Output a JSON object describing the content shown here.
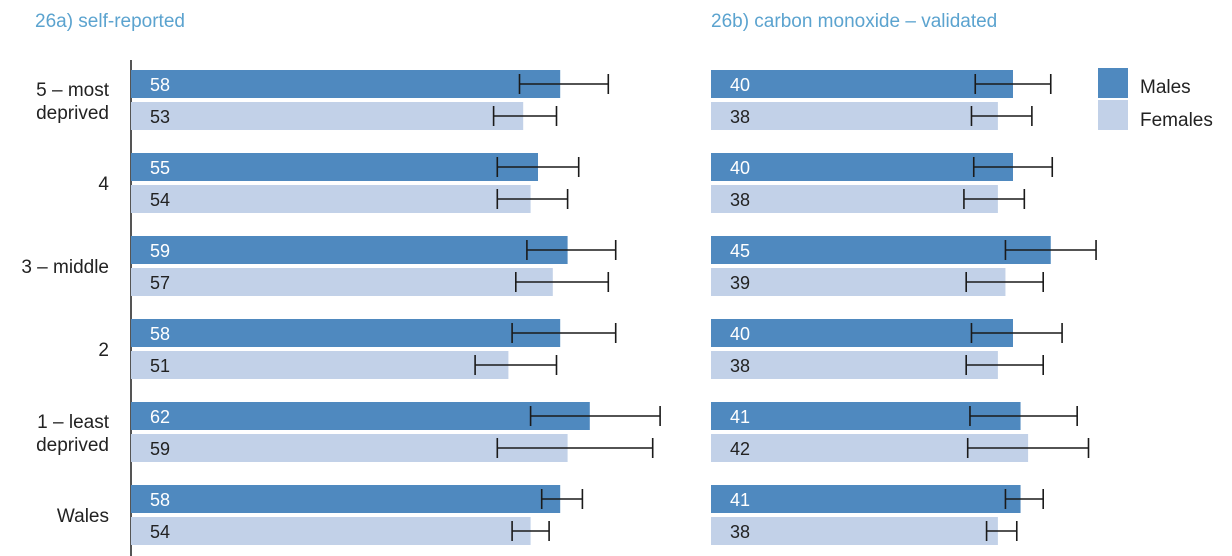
{
  "colors": {
    "males": "#4f89bf",
    "females": "#c2d1e8",
    "title": "#5ba3cf",
    "axis": "#555555",
    "error_bar": "#1a1a1a",
    "male_label": "#ffffff",
    "female_label": "#222222"
  },
  "legend": {
    "males": "Males",
    "females": "Females"
  },
  "chart_data": [
    {
      "type": "bar",
      "orientation": "horizontal",
      "title": "26a) self-reported",
      "categories": [
        "5 – most deprived",
        "4",
        "3 – middle",
        "2",
        "1 – least deprived",
        "Wales"
      ],
      "category_lines": [
        [
          "5 – most",
          "deprived"
        ],
        [
          "4"
        ],
        [
          "3 – middle"
        ],
        [
          "2"
        ],
        [
          "1 – least",
          "deprived"
        ],
        [
          "Wales"
        ]
      ],
      "xlim": [
        0,
        100
      ],
      "series": [
        {
          "name": "Males",
          "values": [
            58,
            55,
            59,
            58,
            62,
            58
          ],
          "ci_low": [
            52.5,
            49.5,
            53.5,
            51.5,
            54,
            55.5
          ],
          "ci_high": [
            64.5,
            60.5,
            65.5,
            65.5,
            71.5,
            61
          ]
        },
        {
          "name": "Females",
          "values": [
            53,
            54,
            57,
            51,
            59,
            54
          ],
          "ci_low": [
            49,
            49.5,
            52,
            46.5,
            49.5,
            51.5
          ],
          "ci_high": [
            57.5,
            59,
            64.5,
            57.5,
            70.5,
            56.5
          ]
        }
      ]
    },
    {
      "type": "bar",
      "orientation": "horizontal",
      "title": "26b) carbon monoxide – validated",
      "categories": [
        "5 – most deprived",
        "4",
        "3 – middle",
        "2",
        "1 – least deprived",
        "Wales"
      ],
      "xlim": [
        0,
        100
      ],
      "series": [
        {
          "name": "Males",
          "values": [
            40,
            40,
            45,
            40,
            41,
            41
          ],
          "ci_low": [
            35,
            34.8,
            39,
            34.5,
            34.3,
            39
          ],
          "ci_high": [
            45,
            45.2,
            51,
            46.5,
            48.5,
            44
          ]
        },
        {
          "name": "Females",
          "values": [
            38,
            38,
            39,
            38,
            42,
            38
          ],
          "ci_low": [
            34.5,
            33.5,
            33.8,
            33.8,
            34,
            36.5
          ],
          "ci_high": [
            42.5,
            41.5,
            44,
            44,
            50,
            40.5
          ]
        }
      ]
    }
  ]
}
